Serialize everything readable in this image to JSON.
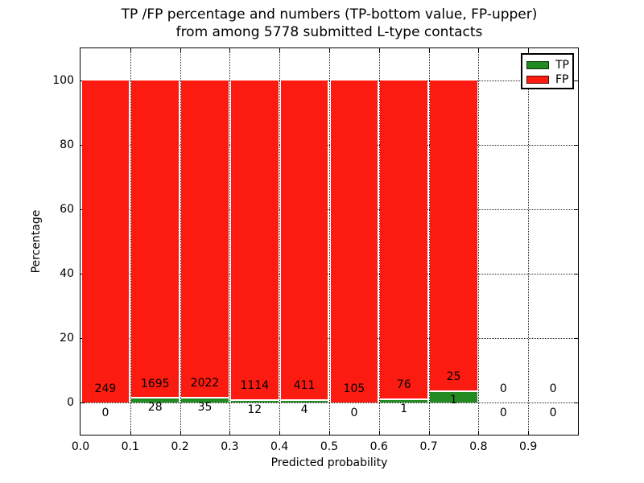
{
  "figure": {
    "title_line1": "TP /FP percentage and numbers (TP-bottom value, FP-upper)",
    "title_line2": "from among 5778 submitted L-type contacts",
    "xlabel": "Predicted probability",
    "ylabel": "Percentage"
  },
  "legend": {
    "items": [
      {
        "label": "TP",
        "color": "#228b22"
      },
      {
        "label": "FP",
        "color": "#fb1b10"
      }
    ]
  },
  "chart_data": {
    "type": "bar",
    "stacked": true,
    "normalized_to_percent": true,
    "title": "TP /FP percentage and numbers (TP-bottom value, FP-upper) from among 5778 submitted L-type contacts",
    "xlabel": "Predicted probability",
    "ylabel": "Percentage",
    "total_submitted": 5778,
    "grid": {
      "style": "dotted",
      "color": "#222222",
      "on": true
    },
    "legend_position": "upper-right",
    "xlim": [
      0.0,
      1.0
    ],
    "ylim": [
      -10,
      110
    ],
    "x_tick_labels": [
      "0.0",
      "0.1",
      "0.2",
      "0.3",
      "0.4",
      "0.5",
      "0.6",
      "0.7",
      "0.8",
      "0.9"
    ],
    "y_tick_values": [
      0,
      20,
      40,
      60,
      80,
      100
    ],
    "bin_width": 0.1,
    "bins": [
      {
        "x_start": 0.0,
        "x_end": 0.1,
        "tp_count": 0,
        "fp_count": 249
      },
      {
        "x_start": 0.1,
        "x_end": 0.2,
        "tp_count": 28,
        "fp_count": 1695
      },
      {
        "x_start": 0.2,
        "x_end": 0.3,
        "tp_count": 35,
        "fp_count": 2022
      },
      {
        "x_start": 0.3,
        "x_end": 0.4,
        "tp_count": 12,
        "fp_count": 1114
      },
      {
        "x_start": 0.4,
        "x_end": 0.5,
        "tp_count": 4,
        "fp_count": 411
      },
      {
        "x_start": 0.5,
        "x_end": 0.6,
        "tp_count": 0,
        "fp_count": 105
      },
      {
        "x_start": 0.6,
        "x_end": 0.7,
        "tp_count": 1,
        "fp_count": 76
      },
      {
        "x_start": 0.7,
        "x_end": 0.8,
        "tp_count": 1,
        "fp_count": 25
      },
      {
        "x_start": 0.8,
        "x_end": 0.9,
        "tp_count": 0,
        "fp_count": 0
      },
      {
        "x_start": 0.9,
        "x_end": 1.0,
        "tp_count": 0,
        "fp_count": 0
      }
    ],
    "series": [
      {
        "name": "TP",
        "color": "#228b22",
        "counts": [
          0,
          28,
          35,
          12,
          4,
          0,
          1,
          1,
          0,
          0
        ]
      },
      {
        "name": "FP",
        "color": "#fb1b10",
        "counts": [
          249,
          1695,
          2022,
          1114,
          411,
          105,
          76,
          25,
          0,
          0
        ]
      }
    ]
  }
}
